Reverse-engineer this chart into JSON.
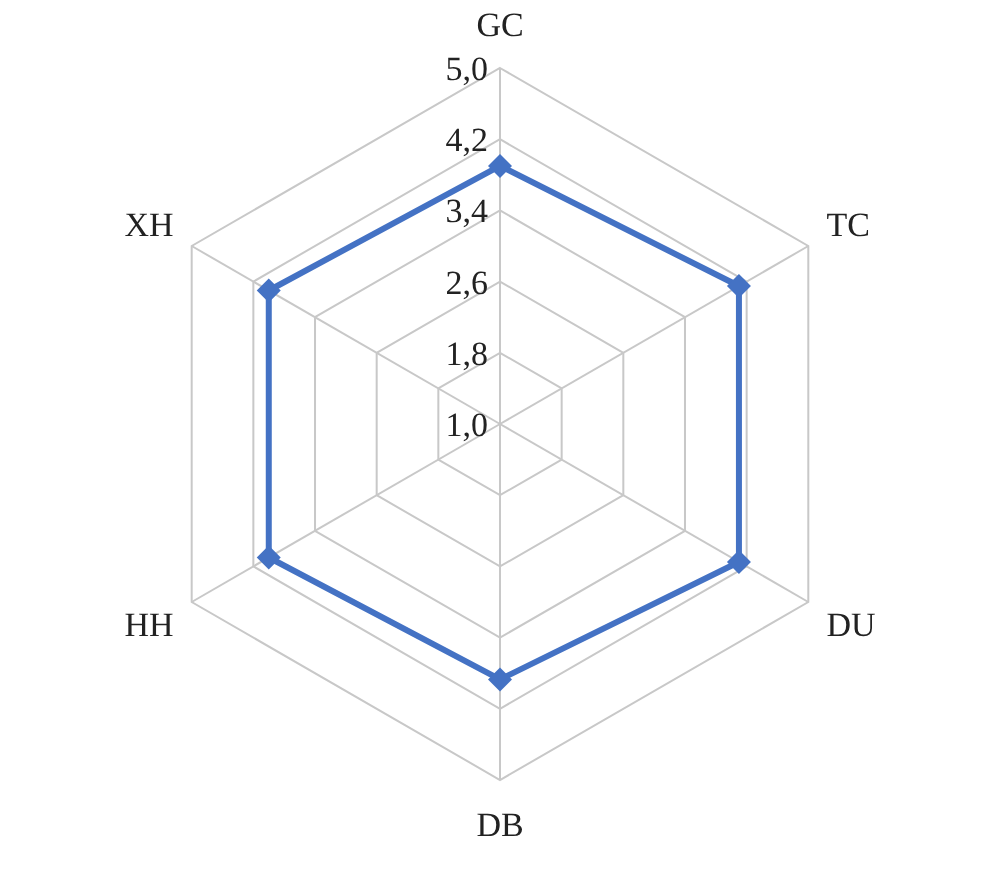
{
  "chart_data": {
    "type": "radar",
    "categories": [
      "GC",
      "TC",
      "DU",
      "DB",
      "HH",
      "XH"
    ],
    "series": [
      {
        "color": "#4472c4",
        "values": [
          3.9,
          4.1,
          4.1,
          3.87,
          4.0,
          4.0
        ]
      }
    ],
    "ylim": [
      1,
      5
    ],
    "yticks": [
      {
        "value": 1,
        "label": "1,0"
      },
      {
        "value": 1.8,
        "label": "1,8"
      },
      {
        "value": 2.6,
        "label": "2,6"
      },
      {
        "value": 3.4,
        "label": "3,4"
      },
      {
        "value": 4.2,
        "label": "4,2"
      },
      {
        "value": 5,
        "label": "5,0"
      }
    ],
    "grid": true,
    "marker": "diamond",
    "line_style": "solid"
  }
}
